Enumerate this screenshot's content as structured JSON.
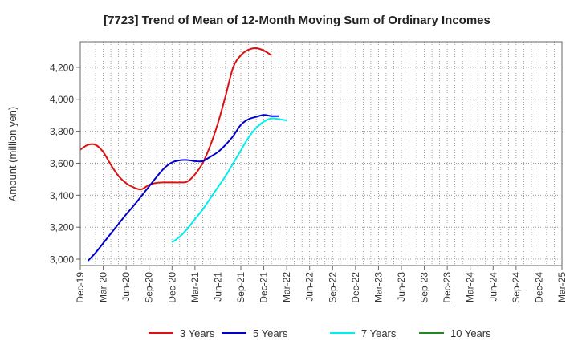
{
  "chart_data": {
    "type": "line",
    "title": "[7723]  Trend of Mean of 12-Month Moving Sum of Ordinary Incomes",
    "xlabel": "",
    "ylabel": "Amount (million yen)",
    "ylim": [
      2960,
      4360
    ],
    "yticks": [
      3000,
      3200,
      3400,
      3600,
      3800,
      4000,
      4200
    ],
    "ytick_labels": [
      "3,000",
      "3,200",
      "3,400",
      "3,600",
      "3,800",
      "4,000",
      "4,200"
    ],
    "x_start_label": "Dec-19",
    "month_count": 63,
    "xtick_labels": [
      "Dec-19",
      "Mar-20",
      "Jun-20",
      "Sep-20",
      "Dec-20",
      "Mar-21",
      "Jun-21",
      "Sep-21",
      "Dec-21",
      "Mar-22",
      "Jun-22",
      "Sep-22",
      "Dec-22",
      "Mar-23",
      "Jun-23",
      "Sep-23",
      "Dec-23",
      "Mar-24",
      "Jun-24",
      "Sep-24",
      "Dec-24",
      "Mar-25"
    ],
    "grid": true,
    "legend_position": "bottom",
    "series": [
      {
        "name": "3 Years",
        "color": "#dd1111",
        "points": [
          [
            0,
            3685
          ],
          [
            3,
            3715
          ],
          [
            6,
            3715
          ],
          [
            9,
            3670
          ],
          [
            12,
            3590
          ],
          [
            15,
            3520
          ],
          [
            18,
            3475
          ],
          [
            21,
            3448
          ],
          [
            24,
            3437
          ],
          [
            27,
            3465
          ],
          [
            30,
            3477
          ],
          [
            33,
            3480
          ],
          [
            36,
            3480
          ],
          [
            39,
            3480
          ],
          [
            42,
            3485
          ],
          [
            45,
            3530
          ],
          [
            48,
            3600
          ],
          [
            51,
            3710
          ],
          [
            54,
            3850
          ],
          [
            57,
            4020
          ],
          [
            60,
            4200
          ],
          [
            63,
            4275
          ],
          [
            66,
            4310
          ],
          [
            69,
            4320
          ],
          [
            72,
            4305
          ],
          [
            75,
            4275
          ]
        ]
      },
      {
        "name": "5 Years",
        "color": "#0000cc",
        "points": [
          [
            3,
            2990
          ],
          [
            6,
            3040
          ],
          [
            9,
            3100
          ],
          [
            12,
            3160
          ],
          [
            15,
            3220
          ],
          [
            18,
            3280
          ],
          [
            21,
            3335
          ],
          [
            24,
            3395
          ],
          [
            27,
            3455
          ],
          [
            30,
            3515
          ],
          [
            33,
            3570
          ],
          [
            36,
            3605
          ],
          [
            39,
            3618
          ],
          [
            42,
            3620
          ],
          [
            45,
            3613
          ],
          [
            48,
            3613
          ],
          [
            51,
            3640
          ],
          [
            54,
            3670
          ],
          [
            57,
            3715
          ],
          [
            60,
            3770
          ],
          [
            63,
            3840
          ],
          [
            66,
            3875
          ],
          [
            69,
            3890
          ],
          [
            72,
            3902
          ],
          [
            75,
            3895
          ],
          [
            78,
            3895
          ]
        ]
      },
      {
        "name": "7 Years",
        "color": "#00eeee",
        "points": [
          [
            36,
            3105
          ],
          [
            39,
            3140
          ],
          [
            42,
            3190
          ],
          [
            45,
            3250
          ],
          [
            48,
            3310
          ],
          [
            51,
            3380
          ],
          [
            54,
            3450
          ],
          [
            57,
            3520
          ],
          [
            60,
            3600
          ],
          [
            63,
            3680
          ],
          [
            66,
            3760
          ],
          [
            69,
            3820
          ],
          [
            72,
            3860
          ],
          [
            75,
            3880
          ],
          [
            78,
            3875
          ],
          [
            81,
            3868
          ]
        ]
      },
      {
        "name": "10 Years",
        "color": "#228822",
        "points": []
      }
    ]
  }
}
